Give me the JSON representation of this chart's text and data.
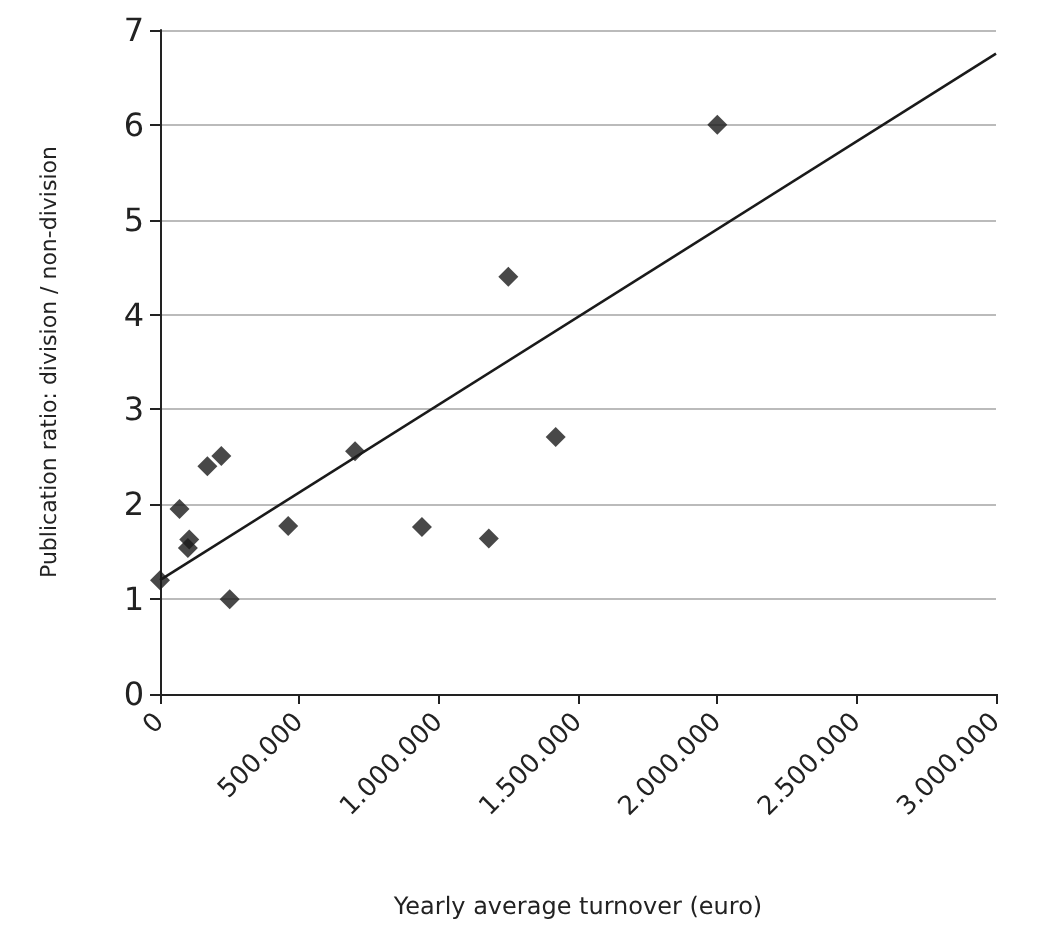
{
  "chart_data": {
    "type": "scatter",
    "xlabel": "Yearly average turnover (euro)",
    "ylabel": "Publication ratio: division / non-division",
    "xlim": [
      0,
      3000000
    ],
    "xticks": [
      {
        "value": 0,
        "label": "0"
      },
      {
        "value": 500000,
        "label": "500.000"
      },
      {
        "value": 1000000,
        "label": "1.000.000"
      },
      {
        "value": 1500000,
        "label": "1.500.000"
      },
      {
        "value": 2000000,
        "label": "2.000.000"
      },
      {
        "value": 2500000,
        "label": "2.500.000"
      },
      {
        "value": 3000000,
        "label": "3.000.000"
      }
    ],
    "ylim": [
      0,
      7
    ],
    "yticks": [
      0,
      1,
      2,
      3,
      4,
      5,
      6,
      7
    ],
    "grid": "y",
    "series": [
      {
        "type": "scatter",
        "color": "#1a1a1a",
        "marker": "diamond",
        "x": [
          0,
          70000,
          105000,
          100000,
          170000,
          220000,
          250000,
          460000,
          700000,
          940000,
          1180000,
          1250000,
          1420000,
          2000000
        ],
        "values": [
          1.2,
          1.95,
          1.63,
          1.54,
          2.4,
          2.51,
          1.0,
          1.77,
          2.56,
          1.76,
          1.64,
          4.4,
          2.71,
          6.0
        ]
      },
      {
        "type": "line",
        "color": "#1a1a1a",
        "marker": "none",
        "x": [
          0,
          3000000
        ],
        "values": [
          1.2,
          6.75
        ]
      }
    ]
  }
}
